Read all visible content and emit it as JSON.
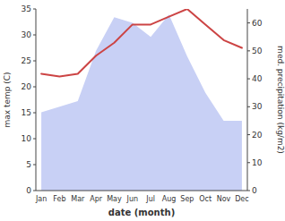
{
  "chart_data": {
    "type": "line",
    "xlabel": "date (month)",
    "ylabel": "max temp (C)",
    "y2label": "med. precipitation (kg/m2)",
    "categories": [
      "Jan",
      "Feb",
      "Mar",
      "Apr",
      "May",
      "Jun",
      "Jul",
      "Aug",
      "Sep",
      "Oct",
      "Nov",
      "Dec"
    ],
    "series": [
      {
        "type": "area",
        "axis": "y2",
        "color": "#c8d0f5",
        "values": [
          28,
          30,
          32,
          50,
          62,
          60,
          55,
          63,
          48,
          35,
          25,
          25
        ]
      },
      {
        "type": "line",
        "color": "#cc4444",
        "values": [
          22.5,
          22.0,
          22.5,
          26.0,
          28.5,
          32.0,
          32.0,
          33.5,
          35.0,
          32.0,
          29.0,
          27.5
        ]
      }
    ],
    "ylim": [
      0,
      35
    ],
    "yticks": [
      0,
      5,
      10,
      15,
      20,
      25,
      30,
      35
    ],
    "y2lim": [
      0,
      65
    ],
    "y2ticks": [
      0,
      10,
      20,
      30,
      40,
      50,
      60
    ],
    "grid": false
  }
}
